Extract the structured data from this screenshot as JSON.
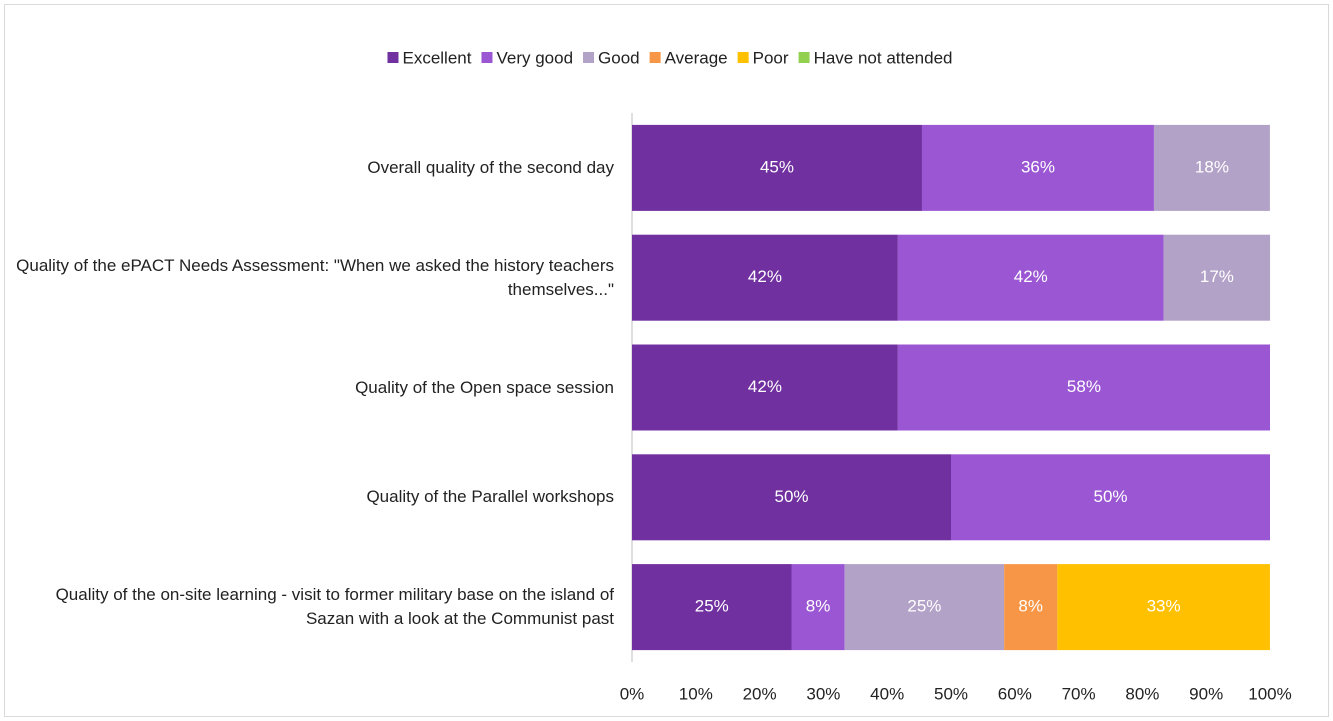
{
  "chart_data": {
    "type": "stacked-bar-horizontal",
    "categories": [
      "Overall quality of the second day",
      "Quality of the ePACT Needs Assessment: \"When we asked the history teachers themselves...\"",
      "Quality of the Open space session",
      "Quality of the Parallel workshops",
      "Quality of the on-site learning - visit to former military base on the island of Sazan with a look at the Communist past"
    ],
    "series": [
      {
        "name": "Excellent",
        "color": "#7030a0",
        "values": [
          45.45,
          41.67,
          41.67,
          50,
          25
        ],
        "value_labels": [
          "45%",
          "42%",
          "42%",
          "50%",
          "25%"
        ]
      },
      {
        "name": "Very good",
        "color": "#9b57d3",
        "values": [
          36.36,
          41.67,
          58.33,
          50,
          8.33
        ],
        "value_labels": [
          "36%",
          "42%",
          "58%",
          "50%",
          "8%"
        ]
      },
      {
        "name": "Good",
        "color": "#b3a2c7",
        "values": [
          18.18,
          16.67,
          0,
          0,
          25
        ],
        "value_labels": [
          "18%",
          "17%",
          null,
          null,
          "25%"
        ]
      },
      {
        "name": "Average",
        "color": "#f79646",
        "values": [
          0,
          0,
          0,
          0,
          8.33
        ],
        "value_labels": [
          null,
          null,
          null,
          null,
          "8%"
        ]
      },
      {
        "name": "Poor",
        "color": "#ffc000",
        "values": [
          0,
          0,
          0,
          0,
          33.33
        ],
        "value_labels": [
          null,
          null,
          null,
          null,
          "33%"
        ]
      },
      {
        "name": "Have not attended",
        "color": "#92d050",
        "values": [
          0,
          0,
          0,
          0,
          0
        ]
      }
    ],
    "xlim": [
      0,
      100
    ],
    "xticks": [
      {
        "value": 0,
        "label": "0%"
      },
      {
        "value": 10,
        "label": "10%"
      },
      {
        "value": 20,
        "label": "20%"
      },
      {
        "value": 30,
        "label": "30%"
      },
      {
        "value": 40,
        "label": "40%"
      },
      {
        "value": 50,
        "label": "50%"
      },
      {
        "value": 60,
        "label": "60%"
      },
      {
        "value": 70,
        "label": "70%"
      },
      {
        "value": 80,
        "label": "80%"
      },
      {
        "value": 90,
        "label": "90%"
      },
      {
        "value": 100,
        "label": "100%"
      }
    ],
    "legend": "top",
    "grid": false
  }
}
